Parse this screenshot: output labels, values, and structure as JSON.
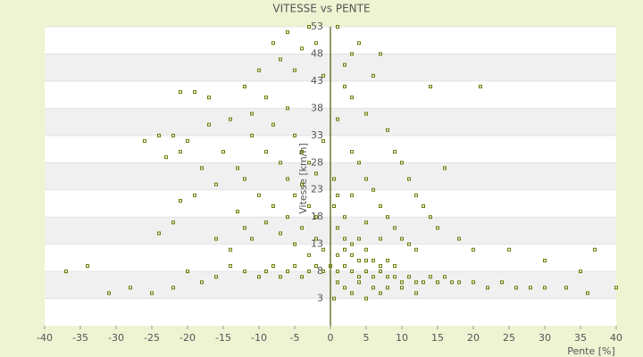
{
  "chart_data": {
    "type": "scatter",
    "title": "VITESSE vs PENTE",
    "x_label": "Pente [%]",
    "y_label": "Vitesse [km/h]",
    "color": "#6b7a00",
    "xlim": [
      -40,
      40
    ],
    "xticks": [
      -40,
      -35,
      -30,
      -25,
      -20,
      -15,
      -10,
      -5,
      0,
      5,
      10,
      15,
      20,
      25,
      30,
      35,
      40
    ],
    "ylim": [
      -2,
      53
    ],
    "yticks": [
      3,
      8,
      13,
      18,
      23,
      28,
      33,
      38,
      43,
      48,
      53
    ],
    "x": [
      0,
      1,
      2,
      3,
      4,
      5,
      6,
      7,
      8,
      9,
      10,
      11,
      12,
      13,
      14,
      15,
      16,
      17,
      18,
      20,
      22,
      24,
      26,
      28,
      30,
      33,
      36,
      40,
      1,
      2,
      3,
      4,
      5,
      6,
      7,
      8,
      9,
      2,
      3,
      4,
      5,
      1,
      2,
      0.5,
      1,
      0.5,
      1,
      2,
      3,
      0.5,
      5,
      7,
      10,
      12,
      4,
      6,
      8,
      -1,
      -2,
      -3,
      -4,
      -5,
      -6,
      -7,
      -8,
      -9,
      -10,
      -12,
      -14,
      -16,
      -18,
      -20,
      -22,
      -25,
      -28,
      -31,
      -34,
      -37,
      -1,
      -2,
      -3,
      -4,
      -5,
      -6,
      -7,
      -8,
      -9,
      -10,
      -11,
      -12,
      -13,
      -14,
      -15,
      -16,
      -18,
      -20,
      -21,
      -22,
      -24,
      -26,
      -23,
      -19,
      -17,
      -21,
      -19,
      -17,
      -14,
      -12,
      -11,
      -10,
      -9,
      -8,
      -7,
      -6,
      -5,
      -4,
      -3,
      -2,
      -1,
      -8,
      -6,
      -5,
      -4,
      -3,
      -2,
      -1,
      -7,
      -9,
      -11,
      -13,
      -6,
      -5,
      -3,
      -2,
      -4,
      -12,
      -16,
      -22,
      -24,
      -21,
      1,
      2,
      3,
      4,
      1,
      2,
      3,
      5,
      6,
      7,
      8,
      9,
      10,
      11,
      12,
      13,
      14,
      15,
      16,
      18,
      20,
      14,
      21,
      25,
      30,
      35,
      37,
      3,
      4,
      5,
      6,
      7,
      8,
      9,
      10,
      11,
      12,
      3,
      5,
      7
    ],
    "values": [
      9,
      8,
      9,
      8,
      7,
      8,
      7,
      8,
      7,
      7,
      6,
      7,
      6,
      6,
      7,
      6,
      7,
      6,
      6,
      6,
      5,
      6,
      5,
      5,
      5,
      5,
      4,
      5,
      11,
      12,
      11,
      10,
      10,
      10,
      9,
      10,
      9,
      14,
      13,
      14,
      12,
      16,
      18,
      20,
      22,
      25,
      6,
      5,
      4,
      3,
      3,
      4,
      5,
      4,
      6,
      5,
      5,
      8,
      9,
      8,
      7,
      9,
      8,
      7,
      9,
      8,
      7,
      8,
      9,
      7,
      6,
      8,
      5,
      4,
      5,
      4,
      9,
      8,
      12,
      14,
      11,
      16,
      13,
      18,
      15,
      20,
      17,
      22,
      14,
      25,
      19,
      12,
      30,
      24,
      27,
      32,
      30,
      33,
      33,
      32,
      29,
      22,
      35,
      41,
      41,
      40,
      36,
      42,
      37,
      45,
      40,
      50,
      47,
      52,
      45,
      49,
      53,
      50,
      44,
      35,
      38,
      33,
      30,
      28,
      26,
      32,
      28,
      30,
      33,
      27,
      25,
      22,
      20,
      18,
      24,
      16,
      14,
      17,
      15,
      21,
      36,
      42,
      48,
      50,
      53,
      46,
      40,
      37,
      44,
      48,
      34,
      30,
      28,
      25,
      22,
      20,
      18,
      16,
      27,
      14,
      12,
      42,
      42,
      12,
      10,
      8,
      12,
      30,
      28,
      25,
      23,
      20,
      18,
      16,
      14,
      13,
      12,
      22,
      17,
      14
    ]
  }
}
